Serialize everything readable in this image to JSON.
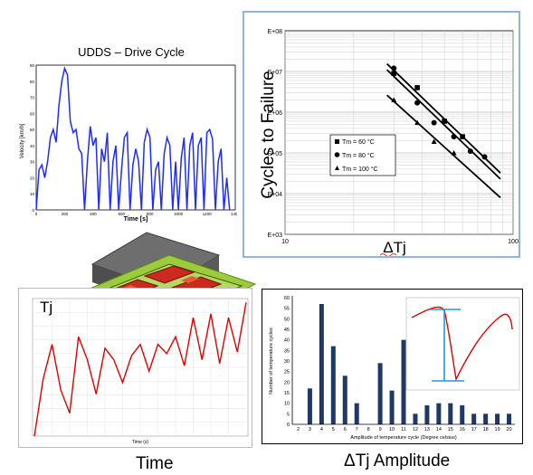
{
  "udds": {
    "title": "UDDS – Drive Cycle",
    "ylabel": "Velocity [km/h]",
    "xlabel": "Time [s]",
    "yticks": [
      "90",
      "80",
      "70",
      "60",
      "50",
      "40",
      "30",
      "20",
      "10",
      "0"
    ],
    "xticks": [
      "0",
      "200",
      "400",
      "600",
      "800",
      "1000",
      "1200",
      "1400"
    ]
  },
  "sn": {
    "ylabel": "Cycles to Failure",
    "xlabel": "ΔTj",
    "yticks": [
      "E+08",
      "E+07",
      "E+06",
      "E+05",
      "E+04",
      "E+03"
    ],
    "xticks": [
      "10",
      "100"
    ],
    "legend": [
      "Tm = 60 °C",
      "Tm = 80 °C",
      "Tm = 100 °C"
    ]
  },
  "tj": {
    "label": "Tj",
    "xlabel": "Time",
    "axis_xlabel": "Time (s)"
  },
  "hist": {
    "ylabel": "Number of temperature cycles",
    "xlabel_small": "Amplitude of temperature cycle (Degree celsius)",
    "xlabel": "ΔTj Amplitude",
    "yticks": [
      "60",
      "55",
      "50",
      "45",
      "40",
      "35",
      "30",
      "25",
      "20",
      "15",
      "10",
      "5",
      "0"
    ],
    "categories": [
      "2",
      "3",
      "4",
      "5",
      "6",
      "7",
      "8",
      "9",
      "10",
      "11",
      "12",
      "13",
      "14",
      "15",
      "16",
      "17",
      "18",
      "19",
      "20"
    ],
    "values": [
      0,
      17,
      57,
      37,
      23,
      10,
      0,
      29,
      16,
      40,
      5,
      9,
      10,
      10,
      9,
      5,
      5,
      5,
      5
    ]
  },
  "colors": {
    "udds_line": "#1f2bff",
    "tj_line": "#e00000",
    "hist_bar": "#1f3864",
    "frame_border": "#8eb4e3",
    "module_green": "#9ccc3c",
    "module_red": "#cc2a1e"
  },
  "chart_data": [
    {
      "type": "line",
      "title": "UDDS – Drive Cycle",
      "xlabel": "Time [s]",
      "ylabel": "Velocity [km/h]",
      "xlim": [
        0,
        1400
      ],
      "ylim": [
        0,
        90
      ],
      "x": [
        0,
        20,
        40,
        60,
        80,
        100,
        120,
        140,
        160,
        180,
        200,
        220,
        240,
        260,
        280,
        300,
        320,
        340,
        360,
        380,
        400,
        420,
        440,
        460,
        480,
        500,
        520,
        540,
        560,
        580,
        600,
        620,
        640,
        660,
        680,
        700,
        720,
        740,
        760,
        780,
        800,
        820,
        840,
        860,
        880,
        900,
        920,
        940,
        960,
        980,
        1000,
        1020,
        1040,
        1060,
        1080,
        1100,
        1120,
        1140,
        1160,
        1180,
        1200,
        1220,
        1240,
        1260,
        1280,
        1300,
        1320,
        1340,
        1360
      ],
      "y": [
        0,
        25,
        28,
        20,
        30,
        45,
        50,
        42,
        65,
        80,
        88,
        84,
        55,
        48,
        50,
        38,
        35,
        0,
        30,
        52,
        40,
        45,
        0,
        38,
        30,
        48,
        0,
        30,
        40,
        0,
        25,
        45,
        48,
        0,
        28,
        38,
        30,
        0,
        42,
        50,
        45,
        0,
        25,
        30,
        0,
        35,
        45,
        40,
        0,
        30,
        0,
        32,
        45,
        0,
        40,
        48,
        0,
        40,
        45,
        0,
        48,
        50,
        44,
        0,
        30,
        38,
        0,
        20,
        0
      ],
      "series": [
        {
          "values": [
            0,
            25,
            28,
            20,
            30,
            45,
            50,
            42,
            65,
            80,
            88,
            84,
            55,
            48,
            50,
            38,
            35,
            0,
            30,
            52,
            40,
            45,
            0,
            38,
            30,
            48,
            0,
            30,
            40,
            0,
            25,
            45,
            48,
            0,
            28,
            38,
            30,
            0,
            42,
            50,
            45,
            0,
            25,
            30,
            0,
            35,
            45,
            40,
            0,
            30,
            0,
            32,
            45,
            0,
            40,
            48,
            0,
            40,
            45,
            0,
            48,
            50,
            44,
            0,
            30,
            38,
            0,
            20,
            0
          ]
        }
      ]
    },
    {
      "type": "scatter",
      "ylabel": "Cycles to Failure",
      "xlabel": "ΔTj",
      "xscale": "log",
      "yscale": "log",
      "xlim": [
        10,
        100
      ],
      "ylim": [
        1000,
        100000000
      ],
      "series": [
        {
          "name": "Tm = 60 °C",
          "marker": "square",
          "x": [
            30,
            38,
            50,
            60
          ],
          "y": [
            9000000,
            4000000,
            600000,
            250000
          ]
        },
        {
          "name": "Tm = 80 °C",
          "marker": "circle",
          "x": [
            30,
            38,
            45,
            55,
            65,
            75
          ],
          "y": [
            12000000,
            1700000,
            550000,
            250000,
            110000,
            80000
          ]
        },
        {
          "name": "Tm = 100 °C",
          "marker": "triangle",
          "x": [
            30,
            38,
            45,
            55
          ],
          "y": [
            2000000,
            550000,
            190000,
            100000
          ]
        }
      ]
    },
    {
      "type": "line",
      "xlabel": "Time (s)",
      "series": [
        {
          "values": [
            0,
            75,
            120,
            60,
            30,
            130,
            100,
            55,
            115,
            100,
            70,
            105,
            120,
            85,
            120,
            108,
            130,
            92,
            155,
            100,
            160,
            95,
            155,
            110,
            175
          ]
        }
      ]
    },
    {
      "type": "bar",
      "xlabel": "Amplitude of temperature cycle (Degree celsius)",
      "ylabel": "Number of temperature cycles",
      "ylim": [
        0,
        60
      ],
      "categories": [
        "2",
        "3",
        "4",
        "5",
        "6",
        "7",
        "8",
        "9",
        "10",
        "11",
        "12",
        "13",
        "14",
        "15",
        "16",
        "17",
        "18",
        "19",
        "20"
      ],
      "values": [
        0,
        17,
        57,
        37,
        23,
        10,
        0,
        29,
        16,
        40,
        5,
        9,
        10,
        10,
        9,
        5,
        5,
        5,
        5
      ]
    }
  ]
}
